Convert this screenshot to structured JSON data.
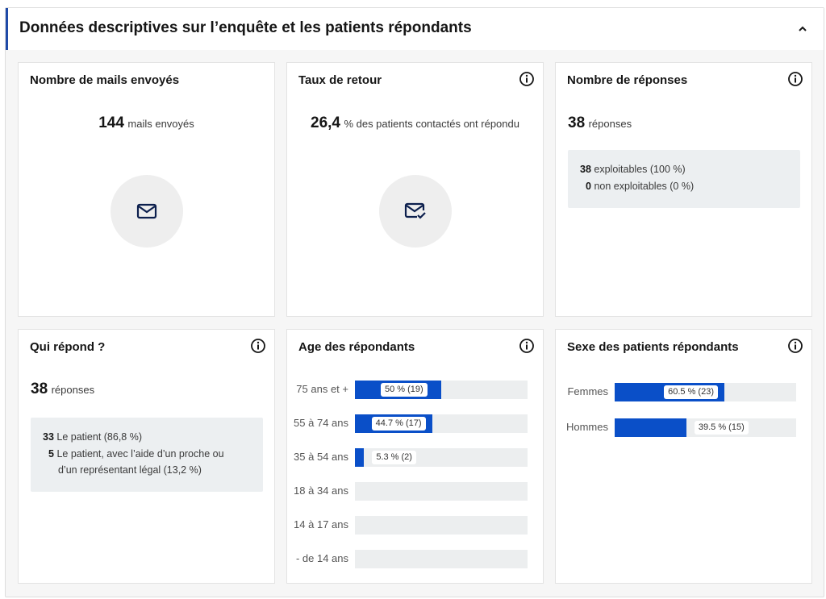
{
  "section": {
    "title": "Données descriptives sur l’enquête et les patients répondants"
  },
  "cards": {
    "mails": {
      "title": "Nombre de mails envoyés",
      "value": "144",
      "suffix": "mails envoyés",
      "icon": "envelope-icon"
    },
    "retour": {
      "title": "Taux de retour",
      "value": "26,4",
      "suffix": "% des patients contactés ont répondu",
      "icon": "envelope-check-icon"
    },
    "reponses": {
      "title": "Nombre de réponses",
      "value": "38",
      "suffix": "réponses",
      "details": [
        {
          "count": "38",
          "text": "exploitables (100 %)"
        },
        {
          "count": "0",
          "text": "non exploitables (0 %)"
        }
      ]
    },
    "qui": {
      "title": "Qui répond ?",
      "value": "38",
      "suffix": "réponses",
      "details": [
        {
          "count": "33",
          "text": "Le patient (86,8 %)"
        },
        {
          "count": "5",
          "text": "Le patient, avec l’aide d’un proche ou",
          "text2": "d’un représentant légal (13,2 %)"
        }
      ]
    },
    "age": {
      "title": "Age des répondants",
      "rows": [
        {
          "label": "75 ans et +",
          "percent": 50,
          "value_label": "50 % (19)"
        },
        {
          "label": "55 à 74 ans",
          "percent": 44.7,
          "value_label": "44.7 % (17)"
        },
        {
          "label": "35 à 54 ans",
          "percent": 5.3,
          "value_label": "5.3 % (2)"
        },
        {
          "label": "18 à 34 ans",
          "percent": 0,
          "value_label": ""
        },
        {
          "label": "14 à 17 ans",
          "percent": 0,
          "value_label": ""
        },
        {
          "label": "- de 14 ans",
          "percent": 0,
          "value_label": ""
        }
      ]
    },
    "sexe": {
      "title": "Sexe des patients répondants",
      "rows": [
        {
          "label": "Femmes",
          "percent": 60.5,
          "value_label": "60.5 % (23)"
        },
        {
          "label": "Hommes",
          "percent": 39.5,
          "value_label": "39.5 % (15)"
        }
      ]
    }
  },
  "colors": {
    "accent": "#0a4fc8",
    "track": "#eceeef",
    "border_accent": "#1f4aa8"
  }
}
